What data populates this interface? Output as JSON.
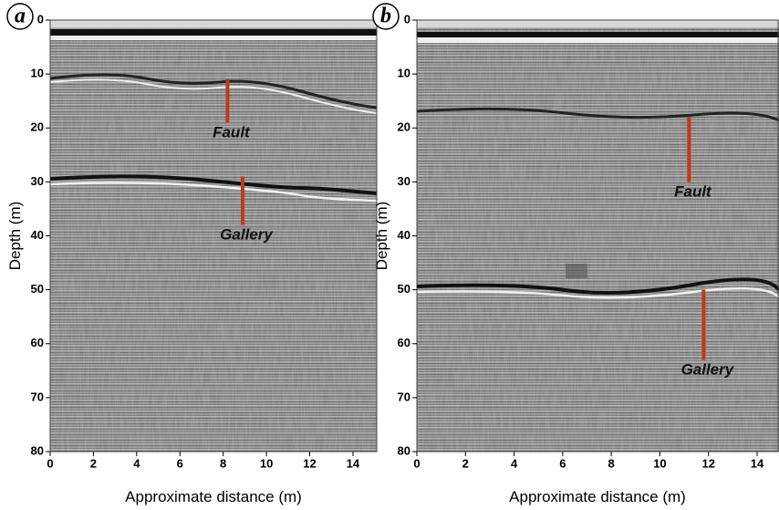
{
  "panels": [
    {
      "label": "a",
      "xlabel": "Approximate distance (m)",
      "ylabel": "Depth (m)",
      "xlim": [
        0,
        15.1
      ],
      "ylim": [
        0,
        80
      ],
      "xticks": [
        0,
        2,
        4,
        6,
        8,
        10,
        12,
        14
      ],
      "yticks": [
        0,
        10,
        20,
        30,
        40,
        50,
        60,
        70,
        80
      ],
      "annotations": [
        {
          "text": "Fault",
          "x": 8.2,
          "y1": 11,
          "y2": 19
        },
        {
          "text": "Gallery",
          "x": 8.9,
          "y1": 29,
          "y2": 38
        }
      ]
    },
    {
      "label": "b",
      "xlabel": "Approximate distance (m)",
      "ylabel": "Depth (m)",
      "xlim": [
        0,
        14.9
      ],
      "ylim": [
        0,
        80
      ],
      "xticks": [
        0,
        2,
        4,
        6,
        8,
        10,
        12,
        14
      ],
      "yticks": [
        0,
        10,
        20,
        30,
        40,
        50,
        60,
        70,
        80
      ],
      "annotations": [
        {
          "text": "Fault",
          "x": 11.2,
          "y1": 18,
          "y2": 30
        },
        {
          "text": "Gallery",
          "x": 11.8,
          "y1": 50,
          "y2": 63
        }
      ]
    }
  ]
}
